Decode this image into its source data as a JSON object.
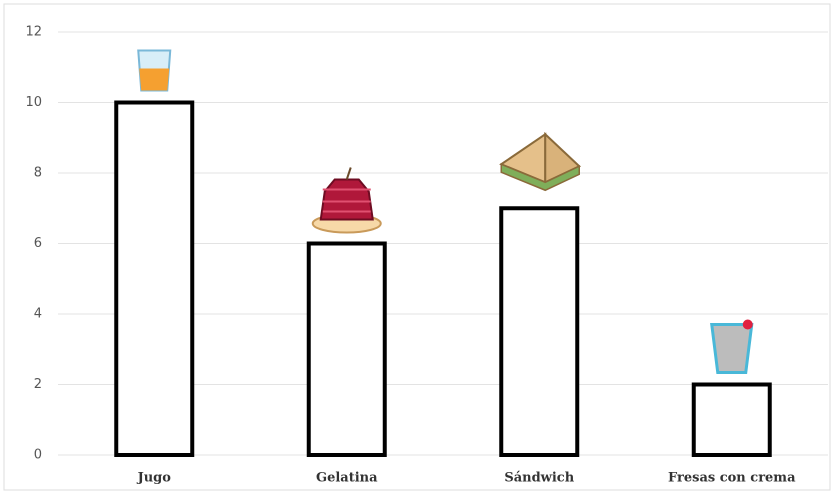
{
  "chart_data": {
    "type": "bar",
    "categories": [
      "Jugo",
      "Gelatina",
      "Sándwich",
      "Fresas con crema"
    ],
    "values": [
      10,
      6,
      7,
      2
    ],
    "color": "#ffffff",
    "edge_color": "#000000",
    "ylim": [
      0,
      12
    ],
    "yticks": [
      0,
      2,
      4,
      6,
      8,
      10,
      12
    ],
    "grid": true
  }
}
